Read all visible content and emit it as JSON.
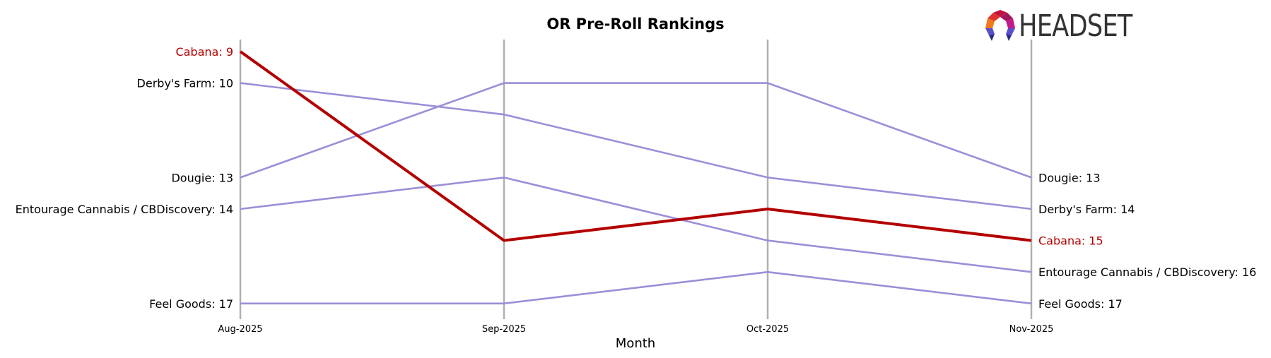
{
  "chart_data": {
    "type": "line",
    "subtype": "bump",
    "title": "OR Pre-Roll Rankings",
    "xlabel": "Month",
    "ylabel": "",
    "categories": [
      "Aug-2025",
      "Sep-2025",
      "Oct-2025",
      "Nov-2025"
    ],
    "y_inverted": true,
    "ylim": [
      9,
      17
    ],
    "grid": false,
    "highlight_series": "Cabana",
    "series": [
      {
        "name": "Cabana",
        "values": [
          9,
          15,
          14,
          15
        ],
        "color": "#b30000",
        "highlight": true
      },
      {
        "name": "Derby's Farm",
        "values": [
          10,
          11,
          13,
          14
        ],
        "color": "#9b8fd8"
      },
      {
        "name": "Dougie",
        "values": [
          13,
          10,
          10,
          13
        ],
        "color": "#9b8fd8"
      },
      {
        "name": "Entourage Cannabis / CBDiscovery",
        "values": [
          14,
          13,
          15,
          16
        ],
        "color": "#9b8fd8"
      },
      {
        "name": "Feel Goods",
        "values": [
          17,
          17,
          16,
          17
        ],
        "color": "#9b8fd8"
      }
    ],
    "left_labels": [
      {
        "text": "Cabana: 9",
        "rank": 9,
        "highlight": true
      },
      {
        "text": "Derby's Farm: 10",
        "rank": 10
      },
      {
        "text": "Dougie: 13",
        "rank": 13
      },
      {
        "text": "Entourage Cannabis / CBDiscovery: 14",
        "rank": 14
      },
      {
        "text": "Feel Goods: 17",
        "rank": 17
      }
    ],
    "right_labels": [
      {
        "text": "Dougie: 13",
        "rank": 13
      },
      {
        "text": "Derby's Farm: 14",
        "rank": 14
      },
      {
        "text": "Cabana: 15",
        "rank": 15,
        "highlight": true
      },
      {
        "text": "Entourage Cannabis / CBDiscovery: 16",
        "rank": 16
      },
      {
        "text": "Feel Goods: 17",
        "rank": 17
      }
    ]
  },
  "logo": {
    "text": "HEADSET"
  },
  "colors": {
    "highlight": "#b30000",
    "other": "#9b8fd8",
    "axis": "#b0b0b0",
    "label": "#000000"
  }
}
